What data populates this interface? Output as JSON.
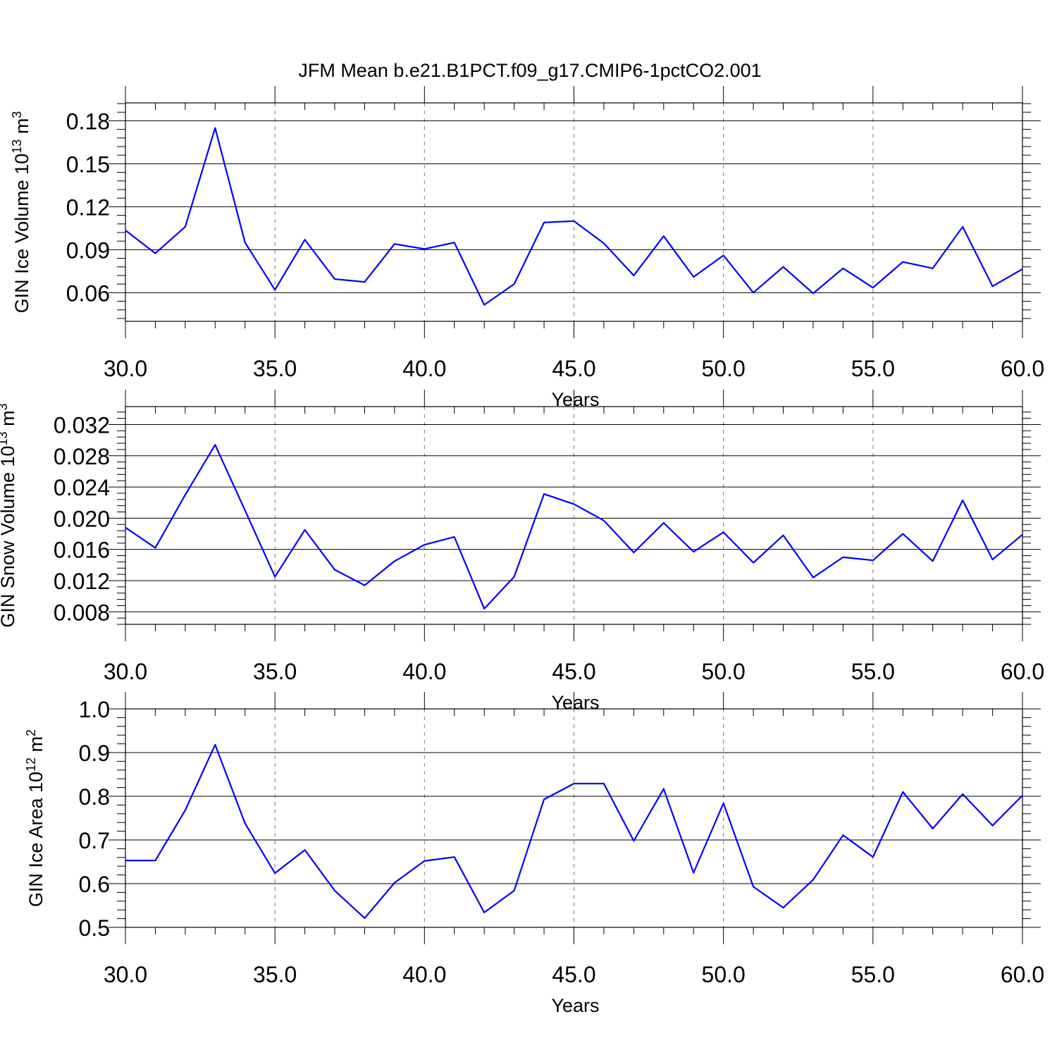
{
  "figure_title": "JFM Mean b.e21.B1PCT.f09_g17.CMIP6-1pctCO2.001",
  "line_color": "#0000ff",
  "chart_data": [
    {
      "type": "line",
      "title": "JFM Mean b.e21.B1PCT.f09_g17.CMIP6-1pctCO2.001",
      "xlabel": "Years",
      "ylabel": "GIN Ice Volume 10",
      "ylabel_exp": "13",
      "ylabel_unit": " m",
      "ylabel_unit_exp": "3",
      "xlim": [
        30,
        60
      ],
      "ylim": [
        0.04,
        0.1925
      ],
      "xticks": [
        30,
        35,
        40,
        45,
        50,
        55,
        60
      ],
      "xtick_labels": [
        "30.0",
        "35.0",
        "40.0",
        "45.0",
        "50.0",
        "55.0",
        "60.0"
      ],
      "yticks": [
        0.06,
        0.09,
        0.12,
        0.15,
        0.18
      ],
      "ytick_labels": [
        "0.06",
        "0.09",
        "0.12",
        "0.15",
        "0.18"
      ],
      "grid": "dashed vertical at major x ticks",
      "x": [
        30,
        31,
        32,
        33,
        34,
        35,
        36,
        37,
        38,
        39,
        40,
        41,
        42,
        43,
        44,
        45,
        46,
        47,
        48,
        49,
        50,
        51,
        52,
        53,
        54,
        55,
        56,
        57,
        58,
        59,
        60
      ],
      "series": [
        {
          "values": [
            0.1035,
            0.0875,
            0.106,
            0.175,
            0.095,
            0.062,
            0.097,
            0.0695,
            0.0675,
            0.094,
            0.0905,
            0.095,
            0.0515,
            0.066,
            0.109,
            0.11,
            0.0945,
            0.072,
            0.0995,
            0.071,
            0.086,
            0.06,
            0.078,
            0.0595,
            0.077,
            0.0635,
            0.0815,
            0.077,
            0.106,
            0.0645,
            0.0765
          ]
        }
      ]
    },
    {
      "type": "line",
      "xlabel": "Years",
      "ylabel": "GIN Snow Volume 10",
      "ylabel_exp": "13",
      "ylabel_unit": " m",
      "ylabel_unit_exp": "3",
      "xlim": [
        30,
        60
      ],
      "ylim": [
        0.0064,
        0.0343
      ],
      "xticks": [
        30,
        35,
        40,
        45,
        50,
        55,
        60
      ],
      "xtick_labels": [
        "30.0",
        "35.0",
        "40.0",
        "45.0",
        "50.0",
        "55.0",
        "60.0"
      ],
      "yticks": [
        0.008,
        0.012,
        0.016,
        0.02,
        0.024,
        0.028,
        0.032
      ],
      "ytick_labels": [
        "0.008",
        "0.012",
        "0.016",
        "0.020",
        "0.024",
        "0.028",
        "0.032"
      ],
      "grid": "dashed vertical at major x ticks",
      "x": [
        30,
        31,
        32,
        33,
        34,
        35,
        36,
        37,
        38,
        39,
        40,
        41,
        42,
        43,
        44,
        45,
        46,
        47,
        48,
        49,
        50,
        51,
        52,
        53,
        54,
        55,
        56,
        57,
        58,
        59,
        60
      ],
      "series": [
        {
          "values": [
            0.0188,
            0.0162,
            0.023,
            0.0294,
            0.021,
            0.0125,
            0.0185,
            0.0134,
            0.0114,
            0.0145,
            0.0166,
            0.0176,
            0.0084,
            0.0125,
            0.0231,
            0.0218,
            0.0197,
            0.0156,
            0.0194,
            0.0157,
            0.0182,
            0.0143,
            0.0178,
            0.0124,
            0.015,
            0.0146,
            0.018,
            0.0145,
            0.0223,
            0.0147,
            0.0179
          ]
        }
      ]
    },
    {
      "type": "line",
      "xlabel": "Years",
      "ylabel": "GIN Ice Area 10",
      "ylabel_exp": "12",
      "ylabel_unit": " m",
      "ylabel_unit_exp": "2",
      "xlim": [
        30,
        60
      ],
      "ylim": [
        0.5,
        1.0
      ],
      "xticks": [
        30,
        35,
        40,
        45,
        50,
        55,
        60
      ],
      "xtick_labels": [
        "30.0",
        "35.0",
        "40.0",
        "45.0",
        "50.0",
        "55.0",
        "60.0"
      ],
      "yticks": [
        0.5,
        0.6,
        0.7,
        0.8,
        0.9,
        1.0
      ],
      "ytick_labels": [
        "0.5",
        "0.6",
        "0.7",
        "0.8",
        "0.9",
        "1.0"
      ],
      "grid": "dashed vertical at major x ticks",
      "x": [
        30,
        31,
        32,
        33,
        34,
        35,
        36,
        37,
        38,
        39,
        40,
        41,
        42,
        43,
        44,
        45,
        46,
        47,
        48,
        49,
        50,
        51,
        52,
        53,
        54,
        55,
        56,
        57,
        58,
        59,
        60
      ],
      "series": [
        {
          "values": [
            0.653,
            0.653,
            0.768,
            0.918,
            0.738,
            0.624,
            0.677,
            0.584,
            0.521,
            0.602,
            0.652,
            0.661,
            0.534,
            0.584,
            0.793,
            0.829,
            0.829,
            0.698,
            0.817,
            0.625,
            0.784,
            0.593,
            0.545,
            0.609,
            0.711,
            0.661,
            0.81,
            0.726,
            0.805,
            0.733,
            0.802
          ]
        }
      ]
    }
  ]
}
